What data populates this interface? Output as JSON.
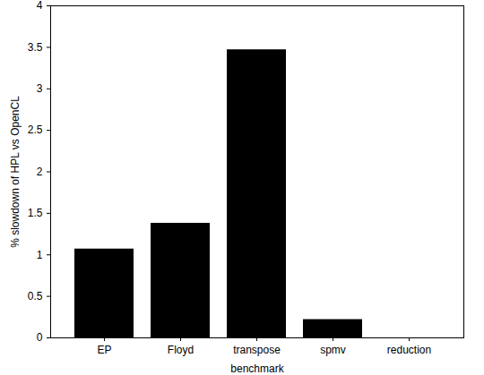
{
  "chart_data": {
    "type": "bar",
    "categories": [
      "EP",
      "Floyd",
      "transpose",
      "spmv",
      "reduction"
    ],
    "values": [
      1.07,
      1.38,
      3.47,
      0.22,
      0
    ],
    "color": "#000000",
    "xlabel": "benchmark",
    "ylabel": "% slowdown of HPL vs OpenCL",
    "ylim": [
      0,
      4
    ],
    "yticks": [
      0,
      0.5,
      1,
      1.5,
      2,
      2.5,
      3,
      3.5,
      4
    ],
    "grid": false
  }
}
